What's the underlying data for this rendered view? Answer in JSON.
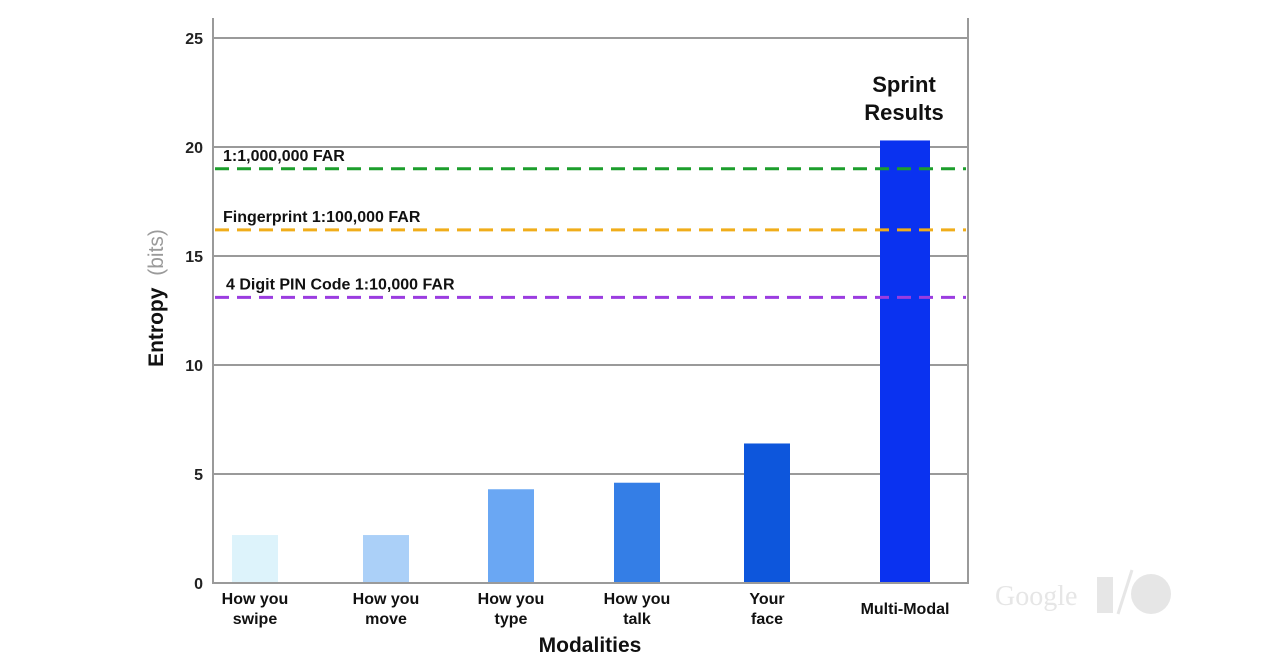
{
  "chart_data": {
    "type": "bar",
    "title": "",
    "xlabel": "Modalities",
    "ylabel_main": "Entropy",
    "ylabel_unit": "(bits)",
    "ylim": [
      0,
      25
    ],
    "yticks": [
      "0",
      "5",
      "10",
      "15",
      "20",
      "25"
    ],
    "grid": true,
    "categories": [
      [
        "How you",
        "swipe"
      ],
      [
        "How you",
        "move"
      ],
      [
        "How you",
        "type"
      ],
      [
        "How you",
        "talk"
      ],
      [
        "Your",
        "face"
      ],
      [
        "Multi-Modal"
      ]
    ],
    "values": [
      2.2,
      2.2,
      4.3,
      4.6,
      6.4,
      20.3
    ],
    "bar_colors": [
      "#ddf3fb",
      "#abd0f8",
      "#6aa7f3",
      "#347ee6",
      "#0d56dc",
      "#0a32f0"
    ],
    "reference_lines": [
      {
        "label": "1:1,000,000 FAR",
        "value": 19.0,
        "color": "#1c9e2c"
      },
      {
        "label": "Fingerprint 1:100,000 FAR",
        "value": 16.2,
        "color": "#f0ad1a"
      },
      {
        "label": "4 Digit PIN Code 1:10,000 FAR",
        "value": 13.1,
        "color": "#9b3ce0"
      }
    ],
    "annotation": {
      "lines": [
        "Sprint",
        "Results"
      ],
      "category_index": 5
    }
  },
  "watermark": {
    "text": "Google",
    "mark": "I/O"
  }
}
